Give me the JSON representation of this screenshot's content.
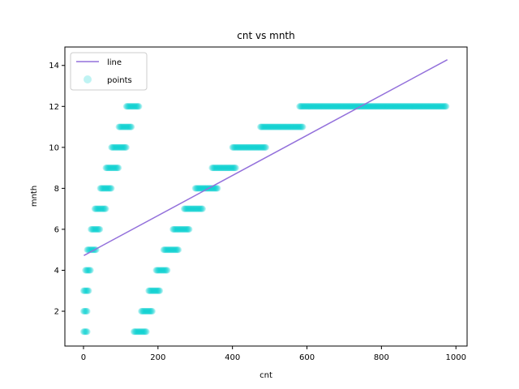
{
  "chart_data": {
    "type": "scatter",
    "title": "cnt vs mnth",
    "xlabel": "cnt",
    "ylabel": "mnth",
    "xlim": [
      -50,
      1030
    ],
    "ylim": [
      0.3,
      14.9
    ],
    "xticks": [
      0,
      200,
      400,
      600,
      800,
      1000
    ],
    "yticks": [
      2,
      4,
      6,
      8,
      10,
      12,
      14
    ],
    "grid": false,
    "legend_position": "top-left",
    "series": [
      {
        "name": "line",
        "kind": "line",
        "color": "#9370db",
        "x": [
          1,
          977
        ],
        "y": [
          4.72,
          14.28
        ]
      },
      {
        "name": "points",
        "kind": "scatter",
        "color": "#00ced1",
        "ranges": [
          {
            "month": 1,
            "x_min": 0,
            "x_max": 10,
            "x2_min": 135,
            "x2_max": 170
          },
          {
            "month": 2,
            "x_min": 0,
            "x_max": 10,
            "x2_min": 155,
            "x2_max": 185
          },
          {
            "month": 3,
            "x_min": 0,
            "x_max": 15,
            "x2_min": 175,
            "x2_max": 205
          },
          {
            "month": 4,
            "x_min": 5,
            "x_max": 20,
            "x2_min": 195,
            "x2_max": 225
          },
          {
            "month": 5,
            "x_min": 10,
            "x_max": 35,
            "x2_min": 215,
            "x2_max": 255
          },
          {
            "month": 6,
            "x_min": 20,
            "x_max": 45,
            "x2_min": 240,
            "x2_max": 285
          },
          {
            "month": 7,
            "x_min": 30,
            "x_max": 60,
            "x2_min": 270,
            "x2_max": 320
          },
          {
            "month": 8,
            "x_min": 45,
            "x_max": 75,
            "x2_min": 300,
            "x2_max": 360
          },
          {
            "month": 9,
            "x_min": 60,
            "x_max": 95,
            "x2_min": 345,
            "x2_max": 410
          },
          {
            "month": 10,
            "x_min": 75,
            "x_max": 115,
            "x2_min": 400,
            "x2_max": 490
          },
          {
            "month": 11,
            "x_min": 95,
            "x_max": 130,
            "x2_min": 475,
            "x2_max": 590
          },
          {
            "month": 12,
            "x_min": 115,
            "x_max": 150,
            "x2_min": 580,
            "x2_max": 975
          }
        ]
      }
    ]
  }
}
